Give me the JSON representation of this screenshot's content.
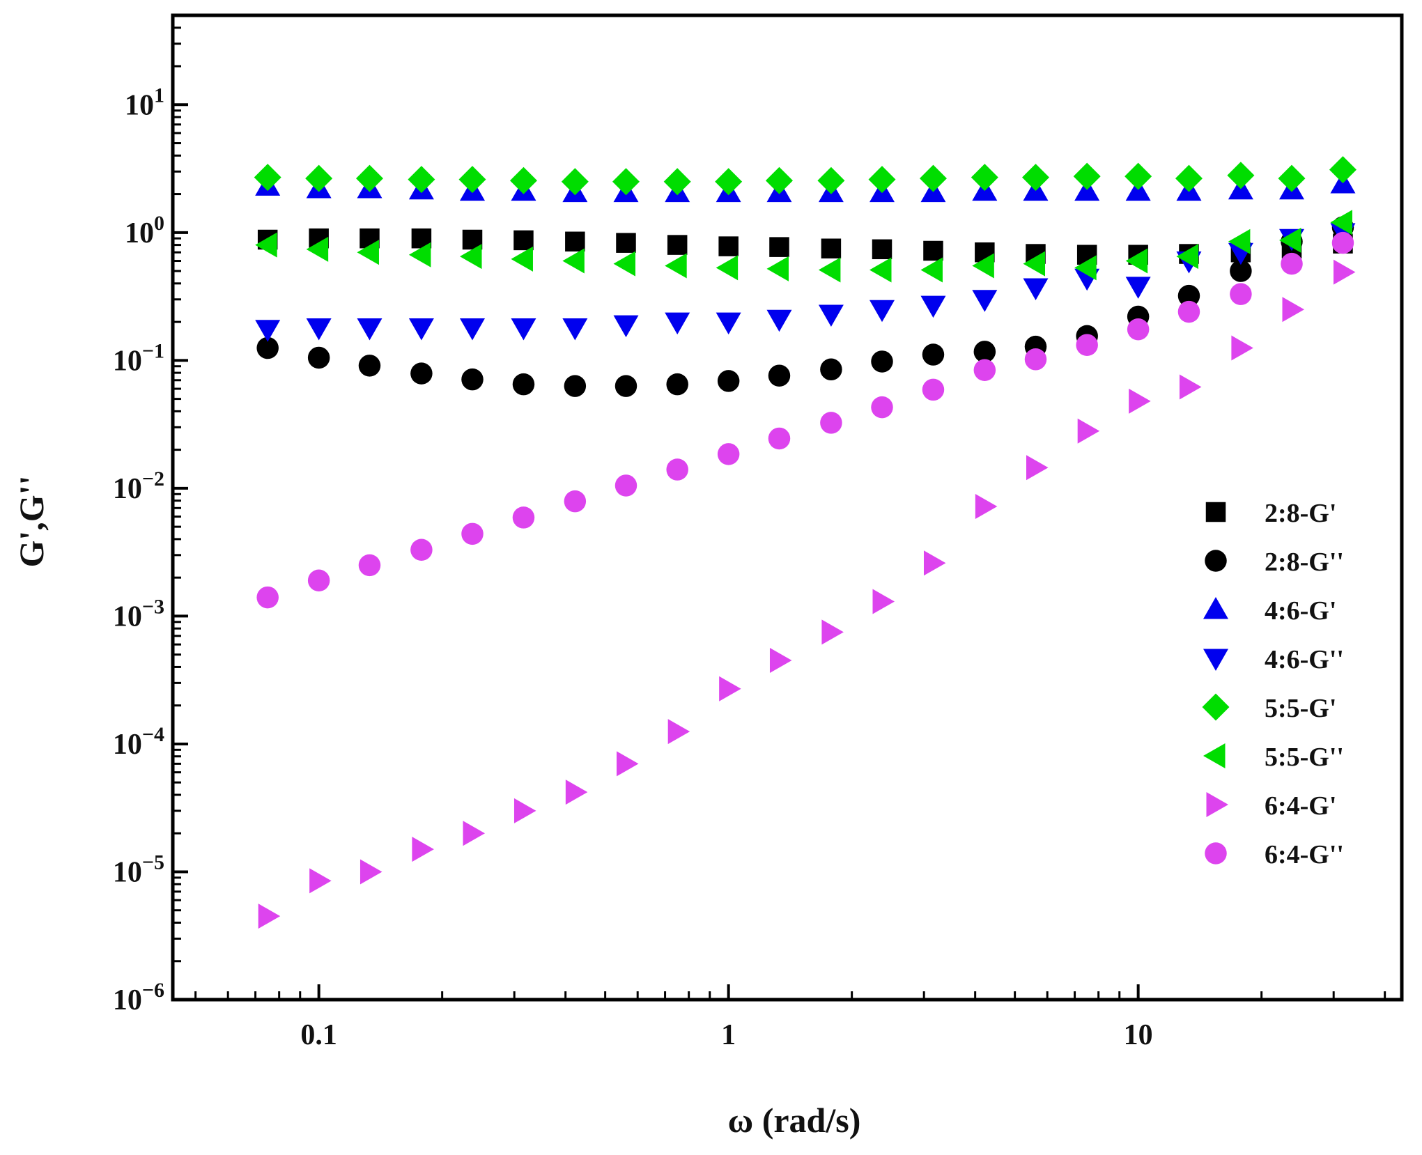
{
  "chart_data": {
    "type": "scatter",
    "title": "",
    "xlabel": "ω (rad/s)",
    "ylabel": "G',G''",
    "xscale": "log",
    "yscale": "log",
    "xlim": [
      0.044,
      44
    ],
    "ylim": [
      1e-06,
      50
    ],
    "x_ticks": [
      {
        "value": 0.1,
        "label": "0.1"
      },
      {
        "value": 1,
        "label": "1"
      },
      {
        "value": 10,
        "label": "10"
      }
    ],
    "y_ticks": [
      {
        "value": 1e-06,
        "base": "10",
        "exp": "−6"
      },
      {
        "value": 1e-05,
        "base": "10",
        "exp": "−5"
      },
      {
        "value": 0.0001,
        "base": "10",
        "exp": "−4"
      },
      {
        "value": 0.001,
        "base": "10",
        "exp": "−3"
      },
      {
        "value": 0.01,
        "base": "10",
        "exp": "−2"
      },
      {
        "value": 0.1,
        "base": "10",
        "exp": "−1"
      },
      {
        "value": 1,
        "base": "10",
        "exp": "0"
      },
      {
        "value": 10,
        "base": "10",
        "exp": "1"
      }
    ],
    "legend_position": "right-middle",
    "x": [
      0.075,
      0.1,
      0.133,
      0.178,
      0.237,
      0.316,
      0.422,
      0.562,
      0.75,
      1.0,
      1.33,
      1.78,
      2.37,
      3.16,
      4.22,
      5.62,
      7.5,
      10.0,
      13.3,
      17.8,
      23.7,
      31.6
    ],
    "series": [
      {
        "name": "2:8-G'",
        "marker": "square",
        "color": "#000000",
        "values": [
          0.88,
          0.9,
          0.9,
          0.9,
          0.88,
          0.87,
          0.85,
          0.83,
          0.8,
          0.78,
          0.77,
          0.75,
          0.74,
          0.72,
          0.7,
          0.68,
          0.67,
          0.67,
          0.68,
          0.7,
          0.75,
          0.82
        ]
      },
      {
        "name": "2:8-G''",
        "marker": "circle",
        "color": "#000000",
        "values": [
          0.125,
          0.105,
          0.091,
          0.079,
          0.071,
          0.065,
          0.063,
          0.063,
          0.065,
          0.069,
          0.076,
          0.085,
          0.098,
          0.111,
          0.117,
          0.128,
          0.155,
          0.22,
          0.32,
          0.5,
          0.85,
          1.1
        ]
      },
      {
        "name": "4:6-G'",
        "marker": "triangle-up",
        "color": "#0000ee",
        "values": [
          2.3,
          2.2,
          2.2,
          2.15,
          2.1,
          2.1,
          2.05,
          2.05,
          2.05,
          2.05,
          2.05,
          2.05,
          2.05,
          2.05,
          2.1,
          2.1,
          2.1,
          2.1,
          2.1,
          2.15,
          2.15,
          2.4
        ]
      },
      {
        "name": "4:6-G''",
        "marker": "triangle-down",
        "color": "#0000ee",
        "values": [
          0.175,
          0.18,
          0.18,
          0.18,
          0.18,
          0.18,
          0.18,
          0.19,
          0.2,
          0.2,
          0.21,
          0.23,
          0.25,
          0.27,
          0.3,
          0.37,
          0.44,
          0.38,
          0.6,
          0.7,
          0.9,
          1.0
        ]
      },
      {
        "name": "5:5-G'",
        "marker": "diamond",
        "color": "#00dd00",
        "values": [
          2.7,
          2.65,
          2.65,
          2.6,
          2.6,
          2.55,
          2.5,
          2.5,
          2.5,
          2.5,
          2.55,
          2.55,
          2.6,
          2.65,
          2.7,
          2.7,
          2.75,
          2.75,
          2.65,
          2.8,
          2.65,
          3.1
        ]
      },
      {
        "name": "5:5-G''",
        "marker": "triangle-left",
        "color": "#00dd00",
        "values": [
          0.8,
          0.74,
          0.7,
          0.67,
          0.65,
          0.62,
          0.6,
          0.57,
          0.55,
          0.53,
          0.52,
          0.51,
          0.51,
          0.51,
          0.55,
          0.57,
          0.53,
          0.6,
          0.65,
          0.85,
          0.87,
          1.2
        ]
      },
      {
        "name": "6:4-G'",
        "marker": "triangle-right",
        "color": "#dd44ee",
        "values": [
          4.5e-06,
          8.5e-06,
          1e-05,
          1.5e-05,
          2e-05,
          3e-05,
          4.2e-05,
          7e-05,
          0.000125,
          0.00027,
          0.00045,
          0.00075,
          0.0013,
          0.0026,
          0.0072,
          0.0145,
          0.028,
          0.048,
          0.062,
          0.125,
          0.25,
          0.49
        ]
      },
      {
        "name": "6:4-G''",
        "marker": "circle",
        "color": "#dd44ee",
        "values": [
          0.0014,
          0.0019,
          0.0025,
          0.0033,
          0.0044,
          0.0059,
          0.0079,
          0.0105,
          0.014,
          0.0185,
          0.0245,
          0.0325,
          0.043,
          0.059,
          0.084,
          0.102,
          0.132,
          0.175,
          0.24,
          0.33,
          0.57,
          0.83
        ]
      }
    ]
  }
}
